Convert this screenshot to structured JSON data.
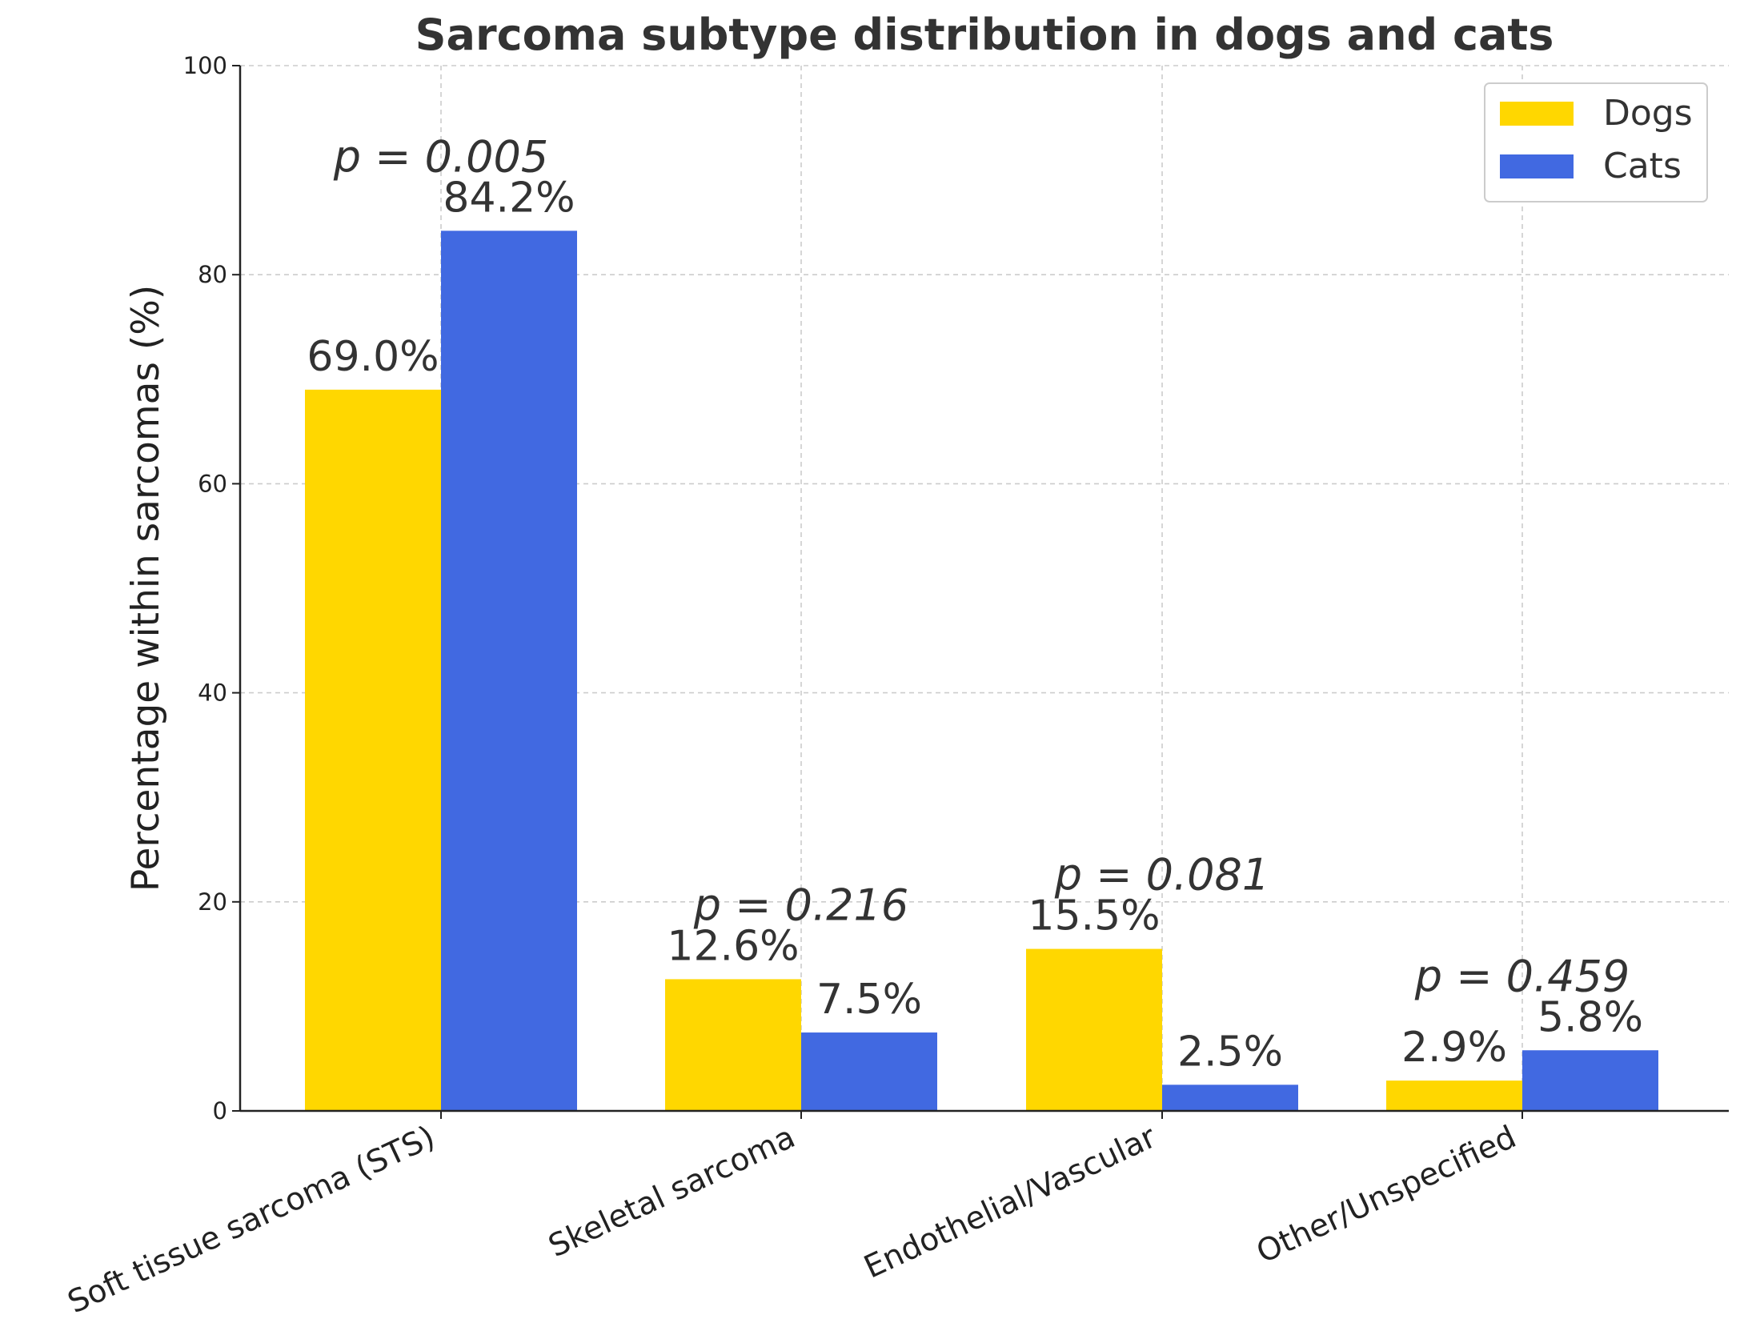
{
  "chart_data": {
    "type": "bar",
    "title": "Sarcoma subtype distribution in dogs and cats",
    "xlabel": "",
    "ylabel": "Percentage within sarcomas (%)",
    "ylim": [
      0,
      100
    ],
    "yticks": [
      0,
      20,
      40,
      60,
      80,
      100
    ],
    "grid": true,
    "legend_position": "top-right",
    "categories": [
      "Soft tissue sarcoma (STS)",
      "Skeletal sarcoma",
      "Endothelial/Vascular",
      "Other/Unspecified"
    ],
    "series": [
      {
        "name": "Dogs",
        "color": "#FFD700",
        "values": [
          69.0,
          12.6,
          15.5,
          2.9
        ],
        "labels": [
          "69.0%",
          "12.6%",
          "15.5%",
          "2.9%"
        ]
      },
      {
        "name": "Cats",
        "color": "#4169E1",
        "values": [
          84.2,
          7.5,
          2.5,
          5.8
        ],
        "labels": [
          "84.2%",
          "7.5%",
          "2.5%",
          "5.8%"
        ]
      }
    ],
    "p_values": [
      "p = 0.005",
      "p = 0.216",
      "p = 0.081",
      "p = 0.459"
    ]
  }
}
